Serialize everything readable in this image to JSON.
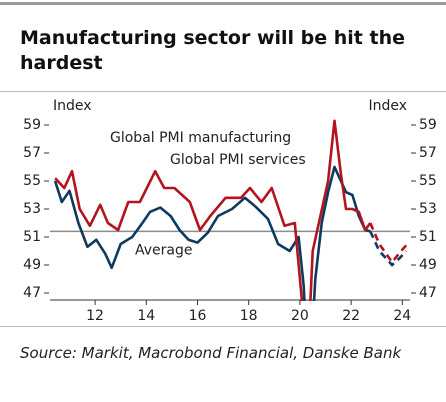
{
  "chart_data": {
    "type": "line",
    "title": "Manufacturing sector will be hit the hardest",
    "source": "Source: Markit, Macrobond Financial, Danske Bank",
    "y_label": "Index",
    "y2_label": "Index",
    "xlim": [
      10.24,
      24.3
    ],
    "xticks": [
      12,
      14,
      16,
      18,
      20,
      22,
      24
    ],
    "ylim": [
      46.5,
      59.8
    ],
    "yticks": [
      47,
      49,
      51,
      53,
      55,
      57,
      59
    ],
    "y2lim": [
      46.5,
      59.8
    ],
    "y2ticks": [
      47,
      49,
      51,
      53,
      55,
      57,
      59
    ],
    "average": 51.4,
    "average_label": "Average",
    "average_color": "#8c8c8c",
    "grid": false,
    "series": [
      {
        "name": "Global PMI manufacturing",
        "color": "#0f3a5f",
        "x": [
          10.44,
          10.7,
          11.0,
          11.35,
          11.7,
          12.05,
          12.4,
          12.65,
          13.0,
          13.45,
          13.85,
          14.15,
          14.55,
          14.95,
          15.3,
          15.65,
          16.0,
          16.4,
          16.8,
          17.35,
          17.85,
          18.25,
          18.75,
          19.15,
          19.6,
          19.95,
          20.15,
          20.35,
          20.6,
          20.85,
          21.1,
          21.35,
          21.6,
          21.8,
          22.05,
          22.3,
          22.55,
          22.75
        ],
        "values": [
          55,
          53.5,
          54.3,
          52,
          50.3,
          50.8,
          49.8,
          48.8,
          50.5,
          51,
          52,
          52.8,
          53.1,
          52.5,
          51.5,
          50.8,
          50.6,
          51.3,
          52.5,
          53,
          53.8,
          53.2,
          52.3,
          50.5,
          50,
          51,
          47.5,
          40,
          48,
          52,
          54.2,
          56,
          55,
          54.2,
          54,
          52.5,
          51.5,
          51.4
        ],
        "forecast_x": [
          22.75,
          23.1,
          23.6,
          23.9,
          24.15
        ],
        "forecast_values": [
          51.4,
          50,
          49,
          49.5,
          50
        ]
      },
      {
        "name": "Global PMI services",
        "color": "#b3141e",
        "x": [
          10.44,
          10.8,
          11.1,
          11.4,
          11.8,
          12.2,
          12.5,
          12.9,
          13.3,
          13.75,
          14.35,
          14.7,
          15.1,
          15.7,
          16.1,
          16.5,
          17.1,
          17.7,
          18.05,
          18.5,
          18.9,
          19.4,
          19.8,
          20.1,
          20.25,
          20.5,
          20.8,
          21.1,
          21.35,
          21.6,
          21.8,
          22.05,
          22.3,
          22.55,
          22.75
        ],
        "values": [
          55.2,
          54.5,
          55.7,
          53,
          51.8,
          53.3,
          52,
          51.5,
          53.5,
          53.5,
          55.7,
          54.5,
          54.5,
          53.5,
          51.5,
          52.5,
          53.8,
          53.8,
          54.5,
          53.5,
          54.5,
          51.8,
          52,
          46,
          40,
          50,
          52.5,
          55,
          59.3,
          55.5,
          53,
          53,
          52.8,
          51.5,
          52
        ],
        "forecast_x": [
          22.75,
          23.1,
          23.6,
          23.9,
          24.15
        ],
        "forecast_values": [
          52,
          50.5,
          49.2,
          49.9,
          50.4
        ]
      }
    ]
  }
}
